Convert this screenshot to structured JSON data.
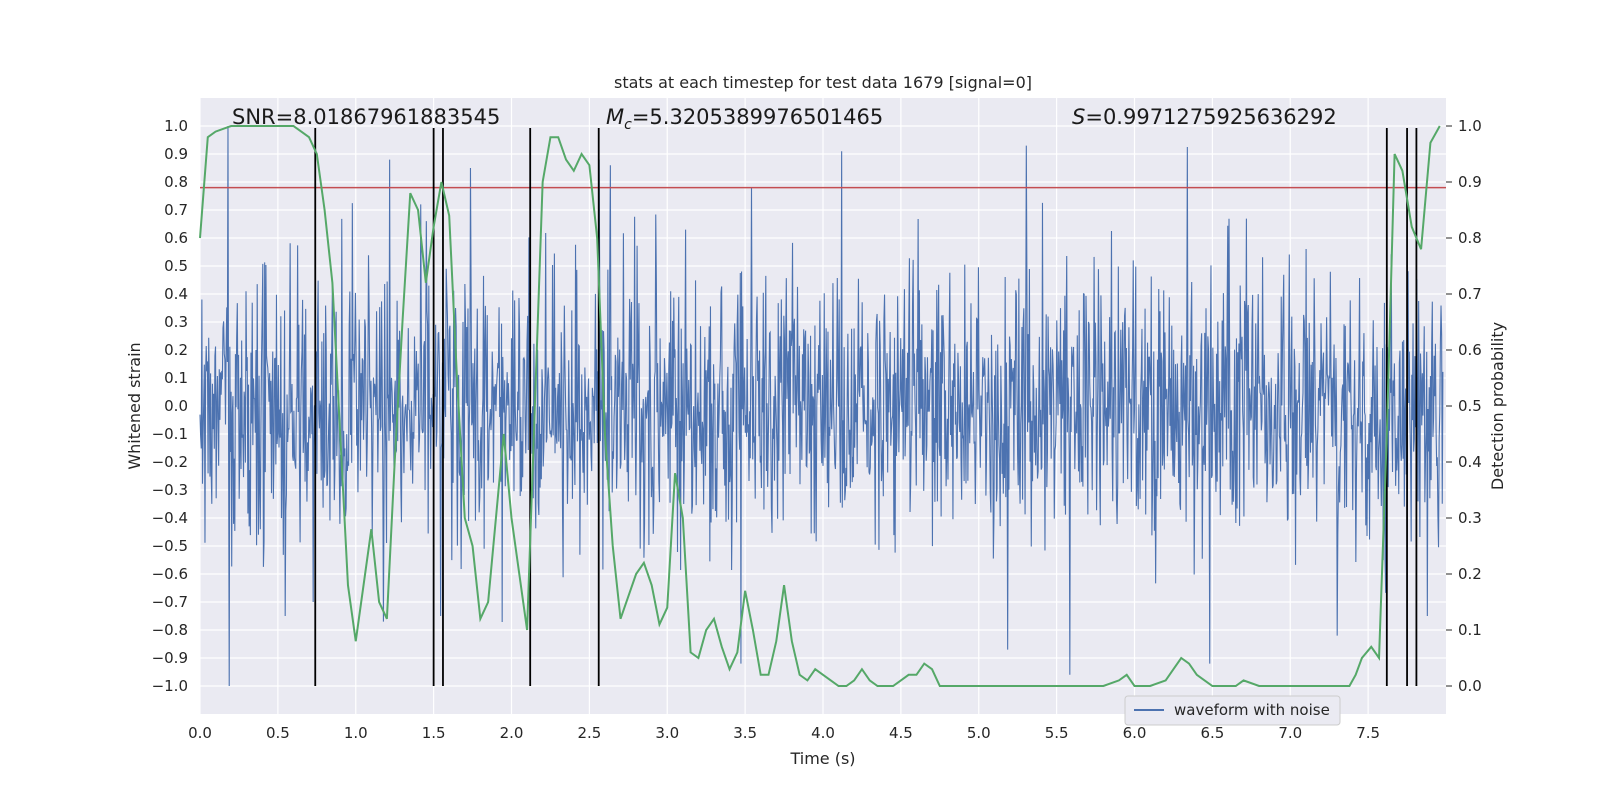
{
  "chart_data": {
    "type": "line",
    "title": "stats at each timestep for test data 1679 [signal=0]",
    "xlabel": "Time (s)",
    "ylabel_left": "Whitened strain",
    "ylabel_right": "Detection probability",
    "xlim": [
      0.0,
      8.0
    ],
    "ylim_left": [
      -1.1,
      1.1
    ],
    "ylim_right": [
      -0.05,
      1.05
    ],
    "x_ticks": [
      0.0,
      0.5,
      1.0,
      1.5,
      2.0,
      2.5,
      3.0,
      3.5,
      4.0,
      4.5,
      5.0,
      5.5,
      6.0,
      6.5,
      7.0,
      7.5
    ],
    "x_tick_labels": [
      "0.0",
      "0.5",
      "1.0",
      "1.5",
      "2.0",
      "2.5",
      "3.0",
      "3.5",
      "4.0",
      "4.5",
      "5.0",
      "5.5",
      "6.0",
      "6.5",
      "7.0",
      "7.5"
    ],
    "y_left_ticks": [
      1.0,
      0.9,
      0.8,
      0.7,
      0.6,
      0.5,
      0.4,
      0.3,
      0.2,
      0.1,
      0.0,
      -0.1,
      -0.2,
      -0.3,
      -0.4,
      -0.5,
      -0.6,
      -0.7,
      -0.8,
      -0.9,
      -1.0
    ],
    "y_left_tick_labels": [
      "1.0",
      "0.9",
      "0.8",
      "0.7",
      "0.6",
      "0.5",
      "0.4",
      "0.3",
      "0.2",
      "0.1",
      "0.0",
      "-0.1",
      "-0.2",
      "-0.3",
      "-0.4",
      "-0.5",
      "-0.6",
      "-0.7",
      "-0.8",
      "-0.9",
      "-1.0"
    ],
    "y_right_ticks": [
      1.0,
      0.9,
      0.8,
      0.7,
      0.6,
      0.5,
      0.4,
      0.3,
      0.2,
      0.1,
      0.0
    ],
    "y_right_tick_labels": [
      "1.0",
      "0.9",
      "0.8",
      "0.7",
      "0.6",
      "0.5",
      "0.4",
      "0.3",
      "0.2",
      "0.1",
      "0.0"
    ],
    "annotations": {
      "snr": "SNR=8.01867961883545",
      "mc_symbol": "M",
      "mc_sub": "c",
      "mc_value": "=5.3205389976501465",
      "s_symbol": "S",
      "s_value": "=0.9971275925636292"
    },
    "legend": {
      "label": "waveform with noise",
      "position": "lower-right"
    },
    "threshold_line": {
      "value": 0.78,
      "axis": "left",
      "color": "#c44e52"
    },
    "vertical_lines_x": [
      0.74,
      1.5,
      1.56,
      2.12,
      2.56,
      7.62,
      7.75,
      7.81
    ],
    "waveform": {
      "name": "waveform with noise",
      "color": "#4c72b0",
      "x_range": [
        0.0,
        8.0
      ],
      "samples": 2000,
      "amplitude_range": [
        -1.0,
        1.0
      ],
      "spikes": [
        {
          "x": 0.18,
          "y": 1.0
        },
        {
          "x": 0.19,
          "y": -1.0
        },
        {
          "x": 0.55,
          "y": -0.75
        },
        {
          "x": 0.73,
          "y": -0.7
        },
        {
          "x": 1.22,
          "y": 0.88
        },
        {
          "x": 1.18,
          "y": -0.77
        },
        {
          "x": 1.42,
          "y": 0.72
        },
        {
          "x": 1.74,
          "y": 0.85
        },
        {
          "x": 1.55,
          "y": -0.75
        },
        {
          "x": 2.57,
          "y": 0.88
        },
        {
          "x": 2.64,
          "y": 0.86
        },
        {
          "x": 3.48,
          "y": -0.92
        },
        {
          "x": 3.55,
          "y": 0.78
        },
        {
          "x": 4.13,
          "y": 0.91
        },
        {
          "x": 5.32,
          "y": 0.93
        },
        {
          "x": 5.2,
          "y": -0.87
        },
        {
          "x": 5.6,
          "y": -0.96
        },
        {
          "x": 6.5,
          "y": -0.92
        },
        {
          "x": 7.32,
          "y": -0.82
        },
        {
          "x": 7.9,
          "y": -0.75
        }
      ]
    },
    "detection_probability": {
      "name": "detection probability",
      "color": "#55a868",
      "x": [
        0.0,
        0.05,
        0.1,
        0.2,
        0.3,
        0.4,
        0.5,
        0.6,
        0.65,
        0.7,
        0.75,
        0.8,
        0.85,
        0.9,
        0.95,
        1.0,
        1.05,
        1.1,
        1.15,
        1.2,
        1.25,
        1.3,
        1.35,
        1.4,
        1.45,
        1.5,
        1.55,
        1.6,
        1.65,
        1.7,
        1.75,
        1.8,
        1.85,
        1.9,
        1.95,
        2.0,
        2.05,
        2.1,
        2.15,
        2.2,
        2.25,
        2.3,
        2.35,
        2.4,
        2.45,
        2.5,
        2.55,
        2.6,
        2.65,
        2.7,
        2.75,
        2.8,
        2.85,
        2.9,
        2.95,
        3.0,
        3.05,
        3.1,
        3.15,
        3.2,
        3.25,
        3.3,
        3.35,
        3.4,
        3.45,
        3.5,
        3.55,
        3.6,
        3.65,
        3.7,
        3.75,
        3.8,
        3.85,
        3.9,
        3.95,
        4.0,
        4.05,
        4.1,
        4.15,
        4.2,
        4.25,
        4.3,
        4.35,
        4.4,
        4.45,
        4.5,
        4.55,
        4.6,
        4.65,
        4.7,
        4.75,
        4.8,
        4.85,
        4.9,
        5.0,
        5.2,
        5.4,
        5.6,
        5.8,
        5.9,
        5.95,
        6.0,
        6.05,
        6.1,
        6.2,
        6.25,
        6.3,
        6.35,
        6.4,
        6.45,
        6.5,
        6.55,
        6.6,
        6.65,
        6.7,
        6.8,
        7.0,
        7.2,
        7.38,
        7.42,
        7.46,
        7.52,
        7.57,
        7.62,
        7.67,
        7.72,
        7.78,
        7.84,
        7.9,
        7.96
      ],
      "y": [
        0.8,
        0.98,
        0.99,
        1.0,
        1.0,
        1.0,
        1.0,
        1.0,
        0.99,
        0.98,
        0.95,
        0.85,
        0.72,
        0.45,
        0.18,
        0.08,
        0.18,
        0.28,
        0.15,
        0.12,
        0.4,
        0.65,
        0.88,
        0.85,
        0.72,
        0.82,
        0.9,
        0.84,
        0.55,
        0.3,
        0.25,
        0.12,
        0.15,
        0.3,
        0.45,
        0.3,
        0.2,
        0.1,
        0.5,
        0.9,
        0.98,
        0.98,
        0.94,
        0.92,
        0.95,
        0.93,
        0.8,
        0.45,
        0.25,
        0.12,
        0.16,
        0.2,
        0.22,
        0.18,
        0.11,
        0.14,
        0.38,
        0.3,
        0.06,
        0.05,
        0.1,
        0.12,
        0.07,
        0.03,
        0.06,
        0.17,
        0.1,
        0.02,
        0.02,
        0.08,
        0.18,
        0.08,
        0.02,
        0.01,
        0.03,
        0.02,
        0.01,
        0.0,
        0.0,
        0.01,
        0.03,
        0.01,
        0.0,
        0.0,
        0.0,
        0.01,
        0.02,
        0.02,
        0.04,
        0.03,
        0.0,
        0.0,
        0.0,
        0.0,
        0.0,
        0.0,
        0.0,
        0.0,
        0.0,
        0.01,
        0.02,
        0.0,
        0.0,
        0.0,
        0.01,
        0.03,
        0.05,
        0.04,
        0.02,
        0.01,
        0.0,
        0.0,
        0.0,
        0.0,
        0.01,
        0.0,
        0.0,
        0.0,
        0.0,
        0.02,
        0.05,
        0.07,
        0.05,
        0.45,
        0.95,
        0.92,
        0.82,
        0.78,
        0.97,
        1.0
      ]
    }
  }
}
